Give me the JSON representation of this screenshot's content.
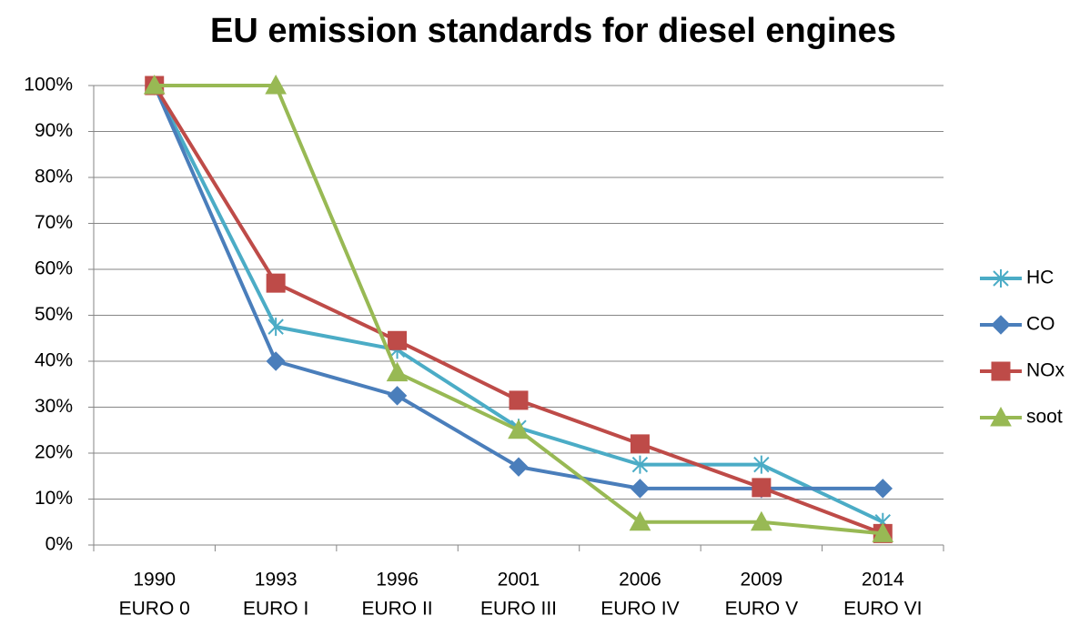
{
  "chart_data": {
    "type": "line",
    "title": "EU emission standards for diesel engines",
    "categories": [
      [
        "1990",
        "EURO 0"
      ],
      [
        "1993",
        "EURO I"
      ],
      [
        "1996",
        "EURO II"
      ],
      [
        "2001",
        "EURO III"
      ],
      [
        "2006",
        "EURO IV"
      ],
      [
        "2009",
        "EURO V"
      ],
      [
        "2014",
        "EURO VI"
      ]
    ],
    "series": [
      {
        "name": "HC",
        "color": "#4bacc6",
        "marker": "asterisk",
        "values": [
          100,
          47.5,
          42.5,
          25.5,
          17.5,
          17.5,
          5
        ]
      },
      {
        "name": "CO",
        "color": "#4a7ebb",
        "marker": "diamond",
        "values": [
          100,
          40,
          32.5,
          17,
          12.3,
          12.3,
          12.3
        ]
      },
      {
        "name": "NOx",
        "color": "#be4b48",
        "marker": "square",
        "values": [
          100,
          57,
          44.5,
          31.5,
          22,
          12.5,
          2.5
        ]
      },
      {
        "name": "soot",
        "color": "#98b954",
        "marker": "triangle",
        "values": [
          100,
          100,
          37.5,
          25,
          5,
          5,
          2.5
        ]
      }
    ],
    "ylim": [
      0,
      100
    ],
    "yticks": [
      {
        "value": 0,
        "label": "0%"
      },
      {
        "value": 10,
        "label": "10%"
      },
      {
        "value": 20,
        "label": "20%"
      },
      {
        "value": 30,
        "label": "30%"
      },
      {
        "value": 40,
        "label": "40%"
      },
      {
        "value": 50,
        "label": "50%"
      },
      {
        "value": 60,
        "label": "60%"
      },
      {
        "value": 70,
        "label": "70%"
      },
      {
        "value": 80,
        "label": "80%"
      },
      {
        "value": 90,
        "label": "90%"
      },
      {
        "value": 100,
        "label": "100%"
      }
    ],
    "grid": true,
    "legend": "right"
  }
}
